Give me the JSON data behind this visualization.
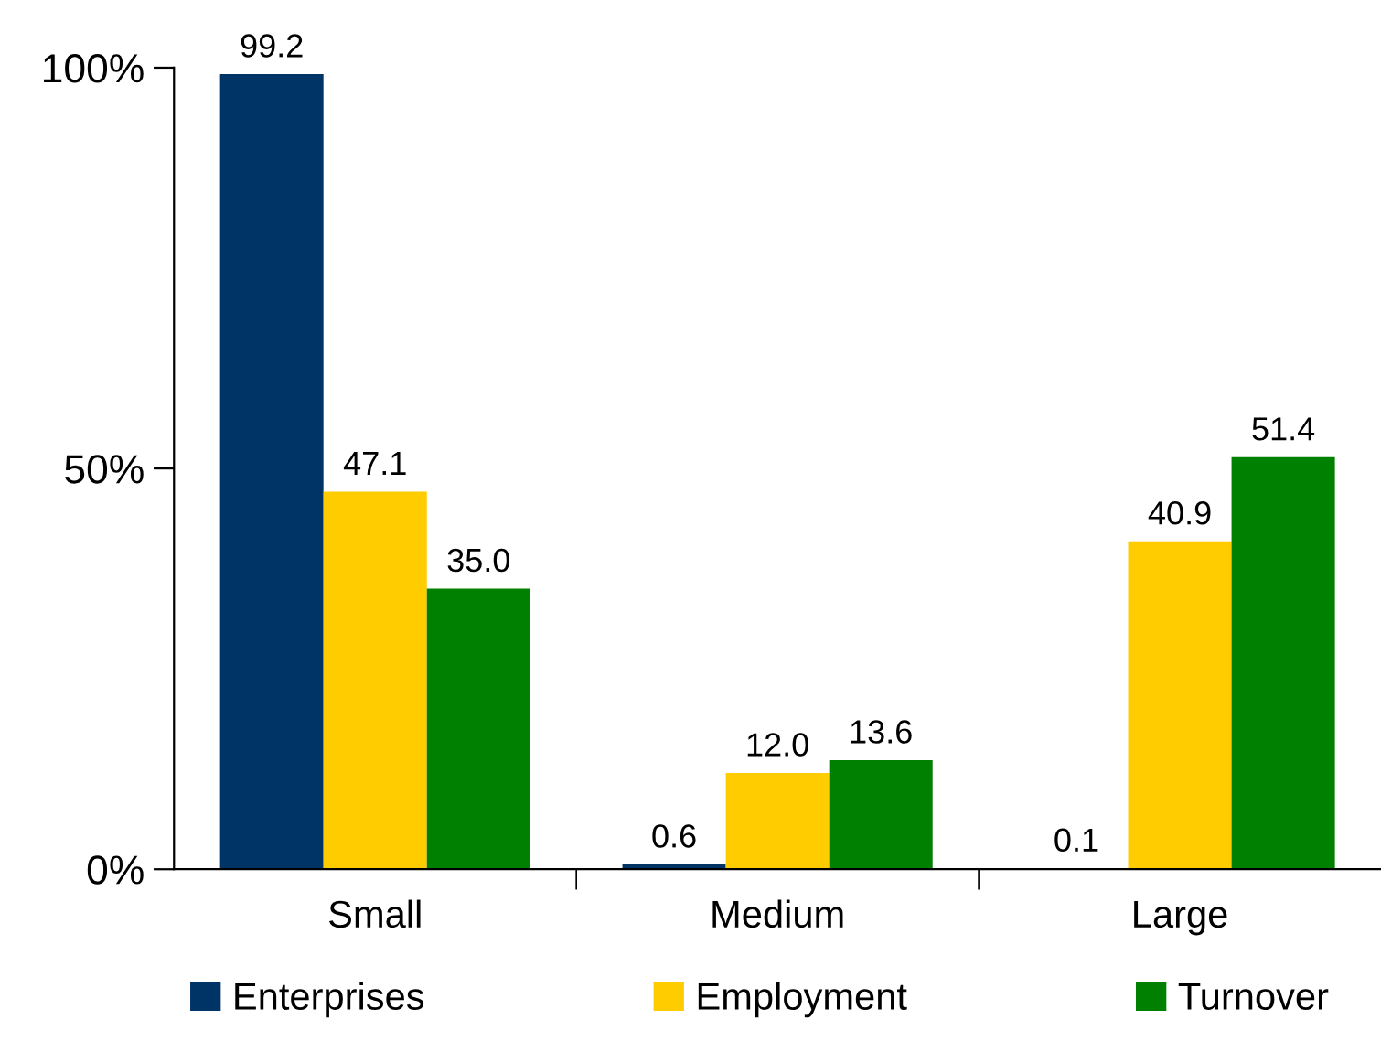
{
  "chart_data": {
    "type": "bar",
    "categories": [
      "Small",
      "Medium",
      "Large"
    ],
    "series": [
      {
        "name": "Enterprises",
        "color": "#003366",
        "values": [
          99.2,
          0.6,
          0.1
        ],
        "value_labels": [
          "99.2",
          "0.6",
          "0.1"
        ]
      },
      {
        "name": "Employment",
        "color": "#ffcc00",
        "values": [
          47.1,
          12.0,
          40.9
        ],
        "value_labels": [
          "47.1",
          "12.0",
          "40.9"
        ]
      },
      {
        "name": "Turnover",
        "color": "#008000",
        "values": [
          35.0,
          13.6,
          51.4
        ],
        "value_labels": [
          "35.0",
          "13.6",
          "51.4"
        ]
      }
    ],
    "ylim": [
      0,
      100
    ],
    "yticks": [
      {
        "value": 0,
        "label": "0%"
      },
      {
        "value": 50,
        "label": "50%"
      },
      {
        "value": 100,
        "label": "100%"
      }
    ],
    "grid": false,
    "legend": "bottom"
  }
}
